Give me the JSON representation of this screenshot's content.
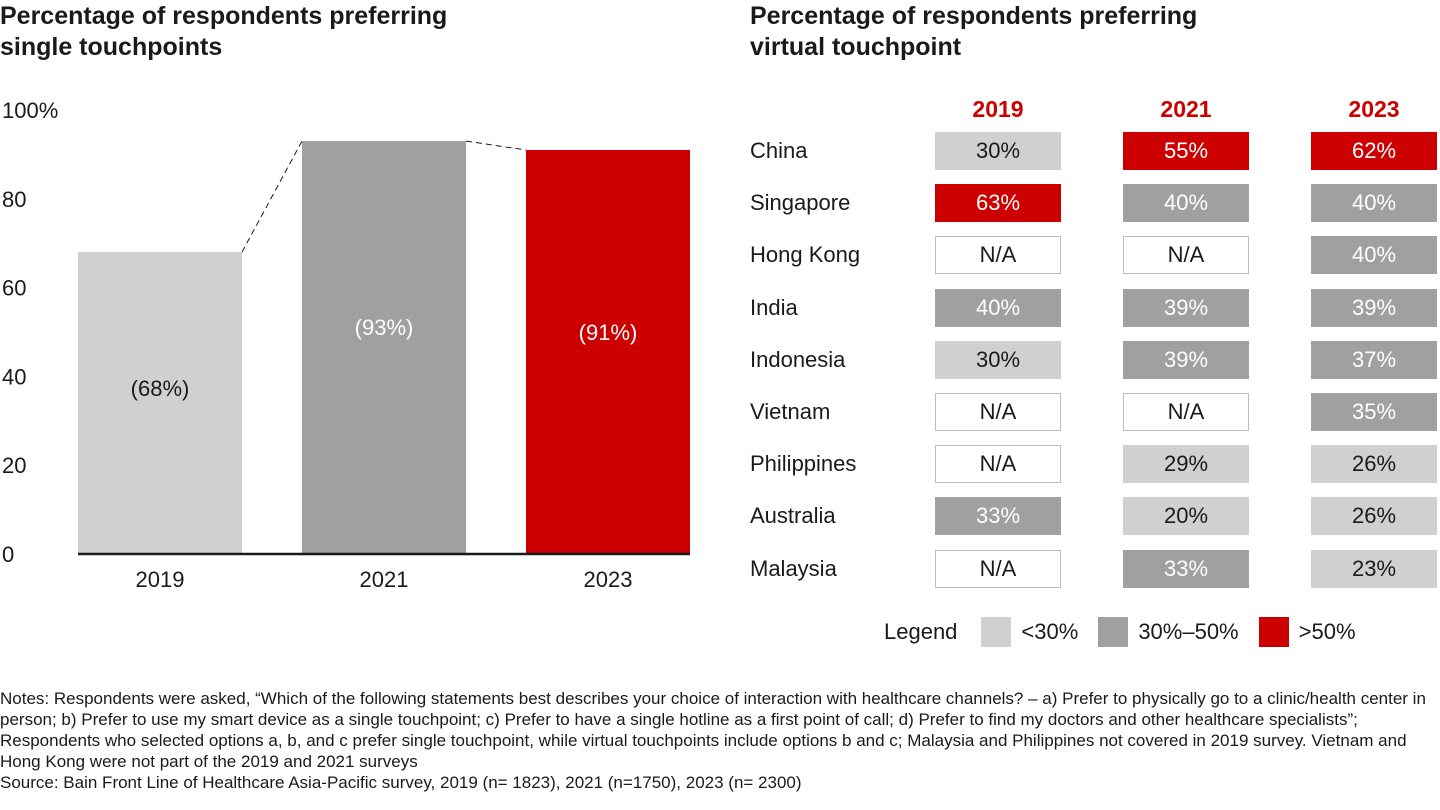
{
  "left": {
    "title": "Percentage of respondents preferring\nsingle touchpoints"
  },
  "right": {
    "title": "Percentage of respondents preferring\nvirtual touchpoint",
    "years": [
      "2019",
      "2021",
      "2023"
    ],
    "rows": [
      {
        "country": "China",
        "cells": [
          {
            "v": "30%",
            "c": "light"
          },
          {
            "v": "55%",
            "c": "high"
          },
          {
            "v": "62%",
            "c": "high"
          }
        ]
      },
      {
        "country": "Singapore",
        "cells": [
          {
            "v": "63%",
            "c": "high"
          },
          {
            "v": "40%",
            "c": "mid"
          },
          {
            "v": "40%",
            "c": "mid"
          }
        ]
      },
      {
        "country": "Hong Kong",
        "cells": [
          {
            "v": "N/A",
            "c": "na"
          },
          {
            "v": "N/A",
            "c": "na"
          },
          {
            "v": "40%",
            "c": "mid"
          }
        ]
      },
      {
        "country": "India",
        "cells": [
          {
            "v": "40%",
            "c": "mid"
          },
          {
            "v": "39%",
            "c": "mid"
          },
          {
            "v": "39%",
            "c": "mid"
          }
        ]
      },
      {
        "country": "Indonesia",
        "cells": [
          {
            "v": "30%",
            "c": "light"
          },
          {
            "v": "39%",
            "c": "mid"
          },
          {
            "v": "37%",
            "c": "mid"
          }
        ]
      },
      {
        "country": "Vietnam",
        "cells": [
          {
            "v": "N/A",
            "c": "na"
          },
          {
            "v": "N/A",
            "c": "na"
          },
          {
            "v": "35%",
            "c": "mid"
          }
        ]
      },
      {
        "country": "Philippines",
        "cells": [
          {
            "v": "N/A",
            "c": "na"
          },
          {
            "v": "29%",
            "c": "light"
          },
          {
            "v": "26%",
            "c": "light"
          }
        ]
      },
      {
        "country": "Australia",
        "cells": [
          {
            "v": "33%",
            "c": "mid"
          },
          {
            "v": "20%",
            "c": "light"
          },
          {
            "v": "26%",
            "c": "light"
          }
        ]
      },
      {
        "country": "Malaysia",
        "cells": [
          {
            "v": "N/A",
            "c": "na"
          },
          {
            "v": "33%",
            "c": "mid"
          },
          {
            "v": "23%",
            "c": "light"
          }
        ]
      }
    ]
  },
  "legend": {
    "title": "Legend",
    "items": [
      {
        "label": "<30%",
        "color": "#d0d0d0"
      },
      {
        "label": "30%–50%",
        "color": "#a0a0a0"
      },
      {
        "label": ">50%",
        "color": "#cc0000"
      }
    ]
  },
  "notes": {
    "text": "Notes: Respondents were asked, “Which of the following statements best describes your choice of interaction with healthcare channels? – a) Prefer to physically go to a clinic/health center in person; b) Prefer to use my smart device as a single touchpoint; c) Prefer to have a single hotline as a first point of call; d) Prefer to find my doctors and other healthcare specialists”; Respondents who selected options a, b, and c prefer single touchpoint, while virtual touchpoints include options b and c; Malaysia and Philippines not covered in 2019 survey. Vietnam and Hong Kong were not part of the 2019 and 2021 surveys",
    "source": "Source: Bain Front Line of Healthcare Asia-Pacific survey, 2019 (n= 1823), 2021 (n=1750), 2023 (n= 2300)"
  },
  "chart_data": [
    {
      "type": "bar",
      "title": "Percentage of respondents preferring single touchpoints",
      "categories": [
        "2019",
        "2021",
        "2023"
      ],
      "values": [
        68,
        93,
        91
      ],
      "data_labels": [
        "(68%)",
        "(93%)",
        "(91%)"
      ],
      "colors": [
        "#d0d0d0",
        "#a0a0a0",
        "#cc0000"
      ],
      "label_colors": [
        "#1a1a1a",
        "#ffffff",
        "#ffffff"
      ],
      "ylim": [
        0,
        100
      ],
      "yticks": [
        0,
        20,
        40,
        60,
        80,
        100
      ],
      "ytick_labels": [
        "0",
        "20",
        "40",
        "60",
        "80",
        "100%"
      ],
      "grid": false,
      "connector_lines": "dashed"
    },
    {
      "type": "table",
      "title": "Percentage of respondents preferring virtual touchpoint",
      "columns": [
        "2019",
        "2021",
        "2023"
      ],
      "rows": [
        "China",
        "Singapore",
        "Hong Kong",
        "India",
        "Indonesia",
        "Vietnam",
        "Philippines",
        "Australia",
        "Malaysia"
      ],
      "values": [
        [
          30,
          55,
          62
        ],
        [
          63,
          40,
          40
        ],
        [
          null,
          null,
          40
        ],
        [
          40,
          39,
          39
        ],
        [
          30,
          39,
          37
        ],
        [
          null,
          null,
          35
        ],
        [
          null,
          29,
          26
        ],
        [
          33,
          20,
          26
        ],
        [
          null,
          33,
          23
        ]
      ]
    }
  ]
}
